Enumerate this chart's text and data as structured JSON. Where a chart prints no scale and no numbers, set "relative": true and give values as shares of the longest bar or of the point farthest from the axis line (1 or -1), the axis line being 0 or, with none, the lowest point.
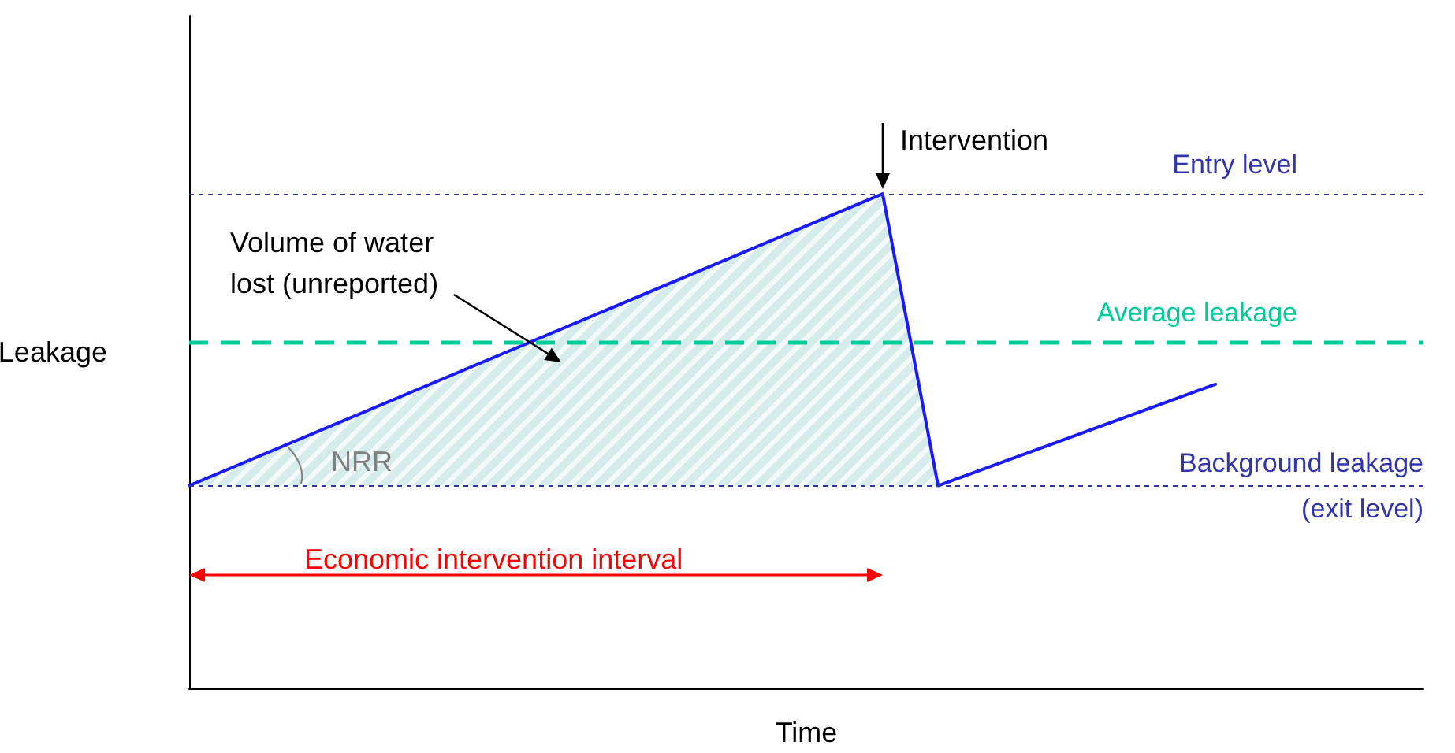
{
  "chart_data": {
    "type": "line",
    "relative": true,
    "xlabel": "Time",
    "ylabel": "Leakage",
    "categories": [
      null,
      null,
      null,
      null,
      null,
      null,
      null,
      null,
      null,
      null,
      null,
      null,
      null,
      null,
      null,
      null,
      null,
      null,
      null,
      null,
      null,
      null,
      null,
      null,
      null,
      null,
      null,
      null,
      null,
      null,
      null,
      null,
      null,
      null,
      null,
      null,
      null,
      null,
      null,
      null,
      null,
      null,
      null,
      null,
      null,
      null,
      null,
      null,
      null,
      null,
      null,
      null,
      null,
      null,
      null,
      null,
      null,
      null,
      null,
      null,
      null,
      null,
      null,
      null,
      null,
      null,
      null,
      null,
      null,
      null,
      null,
      null,
      null,
      null,
      null,
      null,
      null,
      null,
      null,
      null,
      null,
      null,
      null,
      null,
      null,
      null,
      null,
      null,
      null,
      null
    ],
    "marker": "none",
    "line_style": "solid",
    "series": [
      {
        "color": "#1a1aff",
        "values": [
          0.41,
          null,
          null,
          null,
          null,
          null,
          null,
          null,
          null,
          null,
          null,
          null,
          null,
          null,
          null,
          null,
          null,
          null,
          null,
          null,
          null,
          null,
          null,
          null,
          null,
          null,
          null,
          null,
          null,
          null,
          null,
          null,
          null,
          null,
          null,
          null,
          null,
          null,
          null,
          null,
          null,
          null,
          null,
          null,
          null,
          null,
          null,
          null,
          null,
          null,
          1,
          null,
          null,
          null,
          0.41,
          null,
          null,
          null,
          null,
          null,
          null,
          null,
          null,
          null,
          null,
          null,
          null,
          null,
          null,
          null,
          null,
          null,
          null,
          null,
          0.615,
          null,
          null,
          null,
          null,
          null,
          null,
          null,
          null,
          null,
          null,
          null,
          null,
          null,
          null,
          null
        ]
      }
    ],
    "ref_lines": [
      {
        "axis": "y",
        "value": 1,
        "label": "Entry level",
        "color": "#3333aa",
        "line_style": "dotted"
      },
      {
        "axis": "y",
        "value": 0.7,
        "label": "Average leakage",
        "color": "#00cc99",
        "line_style": "dashed"
      },
      {
        "axis": "y",
        "value": 0.41,
        "label": "Background leakage\n(exit level)",
        "color": "#3333aa",
        "line_style": "dotted"
      }
    ],
    "annotations": [
      "Intervention",
      "Volume of water\nlost (unreported)",
      "NRR",
      "Economic intervention interval"
    ]
  }
}
